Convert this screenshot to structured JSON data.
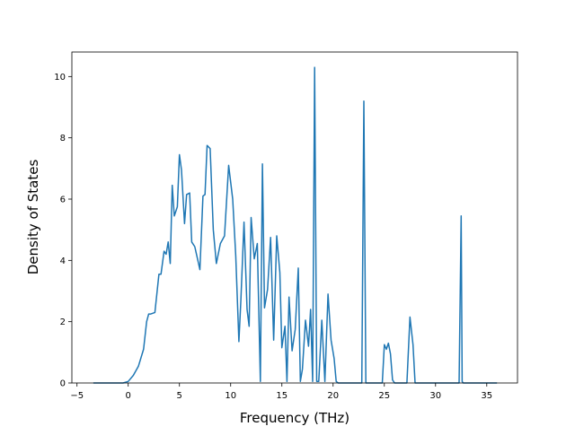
{
  "chart_data": {
    "type": "line",
    "xlabel": "Frequency (THz)",
    "ylabel": "Density of States",
    "xlim": [
      -5.5,
      38
    ],
    "ylim": [
      0,
      10.8
    ],
    "xticks": [
      "−5",
      "0",
      "5",
      "10",
      "15",
      "20",
      "25",
      "30",
      "35"
    ],
    "yticks": [
      "0",
      "2",
      "4",
      "6",
      "8",
      "10"
    ],
    "grid": false,
    "series": [
      {
        "color": "#1f77b4",
        "x": [
          -3.4,
          -0.5,
          0,
          0.5,
          1.0,
          1.5,
          1.8,
          2.0,
          2.2,
          2.6,
          3.0,
          3.2,
          3.5,
          3.7,
          3.9,
          4.1,
          4.3,
          4.5,
          4.8,
          5.0,
          5.2,
          5.5,
          5.7,
          6.0,
          6.2,
          6.5,
          7.0,
          7.3,
          7.5,
          7.7,
          8.0,
          8.3,
          8.6,
          9.0,
          9.4,
          9.8,
          10.2,
          10.5,
          10.8,
          11.0,
          11.3,
          11.6,
          11.8,
          12.0,
          12.3,
          12.6,
          12.9,
          13.1,
          13.3,
          13.6,
          13.9,
          14.2,
          14.5,
          14.8,
          15.0,
          15.3,
          15.5,
          15.7,
          16.0,
          16.3,
          16.6,
          16.8,
          17.0,
          17.3,
          17.6,
          17.8,
          18.0,
          18.2,
          18.4,
          18.6,
          18.9,
          19.2,
          19.5,
          19.8,
          20.1,
          20.3,
          20.5,
          22.8,
          23.0,
          23.2,
          23.4,
          24.8,
          25.0,
          25.2,
          25.4,
          25.6,
          25.8,
          26.0,
          27.2,
          27.5,
          27.8,
          28.0,
          28.2,
          32.3,
          32.5,
          32.6,
          32.7,
          32.9,
          36.0
        ],
        "values": [
          0,
          0,
          0.05,
          0.25,
          0.55,
          1.1,
          2.0,
          2.25,
          2.25,
          2.3,
          3.55,
          3.55,
          4.3,
          4.2,
          4.6,
          3.9,
          6.45,
          5.45,
          5.75,
          7.45,
          6.95,
          5.2,
          6.15,
          6.2,
          4.6,
          4.45,
          3.7,
          6.1,
          6.15,
          7.75,
          7.65,
          5.0,
          3.9,
          4.55,
          4.8,
          7.1,
          6.0,
          4.15,
          1.35,
          2.7,
          5.25,
          2.4,
          1.85,
          5.4,
          4.05,
          4.55,
          0.05,
          7.15,
          2.45,
          3.05,
          4.75,
          1.4,
          4.8,
          3.6,
          1.15,
          1.85,
          0.05,
          2.8,
          1.05,
          1.75,
          3.75,
          0.05,
          0.45,
          2.05,
          1.2,
          2.4,
          0.05,
          10.3,
          0.05,
          0.05,
          2.05,
          0.05,
          2.9,
          1.4,
          0.8,
          0.05,
          0,
          0,
          9.2,
          0,
          0,
          0,
          1.25,
          1.1,
          1.3,
          0.95,
          0.1,
          0,
          0,
          2.15,
          1.25,
          0,
          0,
          0,
          5.45,
          0.05,
          0,
          0,
          0
        ]
      }
    ]
  }
}
